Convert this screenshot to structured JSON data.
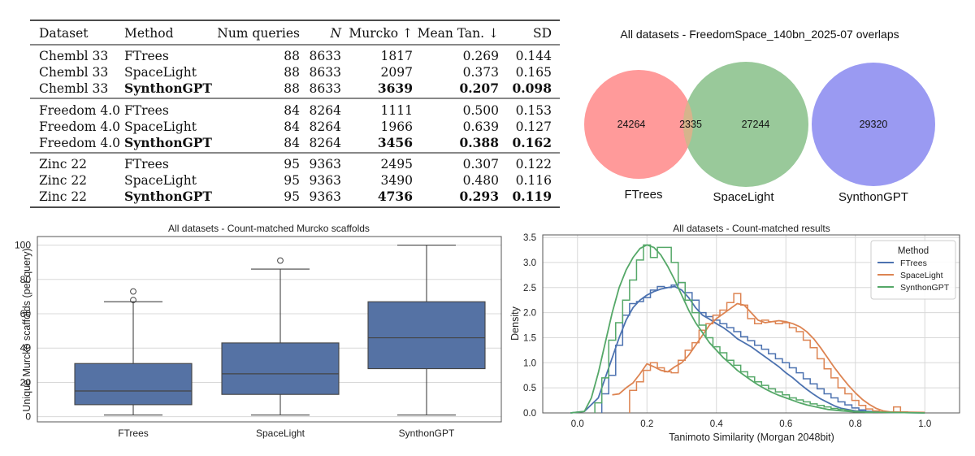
{
  "table": {
    "headers": [
      "Dataset",
      "Method",
      "Num queries",
      "N",
      "Murcko ↑",
      "Mean Tan. ↓",
      "SD"
    ],
    "groups": [
      {
        "rows": [
          {
            "dataset": "Chembl 33",
            "method": "FTrees",
            "num_queries": "88",
            "n": "8633",
            "murcko": "1817",
            "mean_tan": "0.269",
            "sd": "0.144",
            "bold_method": false,
            "bold_murcko": false,
            "bold_tan": false,
            "bold_sd": false
          },
          {
            "dataset": "Chembl 33",
            "method": "SpaceLight",
            "num_queries": "88",
            "n": "8633",
            "murcko": "2097",
            "mean_tan": "0.373",
            "sd": "0.165",
            "bold_method": false,
            "bold_murcko": false,
            "bold_tan": false,
            "bold_sd": false
          },
          {
            "dataset": "Chembl 33",
            "method": "SynthonGPT",
            "num_queries": "88",
            "n": "8633",
            "murcko": "3639",
            "mean_tan": "0.207",
            "sd": "0.098",
            "bold_method": true,
            "bold_murcko": true,
            "bold_tan": true,
            "bold_sd": true
          }
        ]
      },
      {
        "rows": [
          {
            "dataset": "Freedom 4.0",
            "method": "FTrees",
            "num_queries": "84",
            "n": "8264",
            "murcko": "1111",
            "mean_tan": "0.500",
            "sd": "0.153",
            "bold_method": false,
            "bold_murcko": false,
            "bold_tan": false,
            "bold_sd": false
          },
          {
            "dataset": "Freedom 4.0",
            "method": "SpaceLight",
            "num_queries": "84",
            "n": "8264",
            "murcko": "1966",
            "mean_tan": "0.639",
            "sd": "0.127",
            "bold_method": false,
            "bold_murcko": false,
            "bold_tan": false,
            "bold_sd": false
          },
          {
            "dataset": "Freedom 4.0",
            "method": "SynthonGPT",
            "num_queries": "84",
            "n": "8264",
            "murcko": "3456",
            "mean_tan": "0.388",
            "sd": "0.162",
            "bold_method": true,
            "bold_murcko": true,
            "bold_tan": true,
            "bold_sd": true
          }
        ]
      },
      {
        "rows": [
          {
            "dataset": "Zinc 22",
            "method": "FTrees",
            "num_queries": "95",
            "n": "9363",
            "murcko": "2495",
            "mean_tan": "0.307",
            "sd": "0.122",
            "bold_method": false,
            "bold_murcko": false,
            "bold_tan": false,
            "bold_sd": false
          },
          {
            "dataset": "Zinc 22",
            "method": "SpaceLight",
            "num_queries": "95",
            "n": "9363",
            "murcko": "3490",
            "mean_tan": "0.480",
            "sd": "0.116",
            "bold_method": false,
            "bold_murcko": false,
            "bold_tan": false,
            "bold_sd": false
          },
          {
            "dataset": "Zinc 22",
            "method": "SynthonGPT",
            "num_queries": "95",
            "n": "9363",
            "murcko": "4736",
            "mean_tan": "0.293",
            "sd": "0.119",
            "bold_method": true,
            "bold_murcko": true,
            "bold_tan": true,
            "bold_sd": true
          }
        ]
      }
    ]
  },
  "colors": {
    "box_fill": "#5572a4",
    "ftrees": "#4c72b0",
    "spacelight": "#dd8452",
    "synthongpt": "#55a868",
    "venn_ftrees": "#ff9a9a",
    "venn_spacelight": "#99c99a",
    "venn_synthongpt": "#9a9af2",
    "venn_overlap": "#d6b48c"
  },
  "chart_data": [
    {
      "type": "venn",
      "title": "All datasets - FreedomSpace_140bn_2025-07 overlaps",
      "sets": [
        "FTrees",
        "SpaceLight",
        "SynthonGPT"
      ],
      "regions": [
        {
          "label": "FTrees only",
          "value": 24264
        },
        {
          "label": "FTrees ∩ SpaceLight",
          "value": 2335
        },
        {
          "label": "SpaceLight only",
          "value": 27244
        },
        {
          "label": "SynthonGPT only",
          "value": 29320
        }
      ]
    },
    {
      "type": "box",
      "title": "All datasets - Count-matched Murcko scaffolds",
      "xlabel": "",
      "ylabel": "Unique Murcko scaffolds (per query)",
      "categories": [
        "FTrees",
        "SpaceLight",
        "SynthonGPT"
      ],
      "ylim": [
        -3,
        105
      ],
      "yticks": [
        0,
        20,
        40,
        60,
        80,
        100
      ],
      "grid": true,
      "boxes": [
        {
          "min": 1,
          "q1": 7,
          "median": 15,
          "q3": 31,
          "max": 67,
          "outliers": [
            68,
            73
          ]
        },
        {
          "min": 1,
          "q1": 13,
          "median": 25,
          "q3": 43,
          "max": 86,
          "outliers": [
            91
          ]
        },
        {
          "min": 1,
          "q1": 28,
          "median": 46,
          "q3": 67,
          "max": 100,
          "outliers": []
        }
      ]
    },
    {
      "type": "area",
      "title": "All datasets - Count-matched results",
      "xlabel": "Tanimoto Similarity (Morgan 2048bit)",
      "ylabel": "Density",
      "xlim": [
        -0.1,
        1.1
      ],
      "ylim": [
        0,
        3.55
      ],
      "xticks": [
        "0.0",
        "0.2",
        "0.4",
        "0.6",
        "0.8",
        "1.0"
      ],
      "yticks": [
        "0.0",
        "0.5",
        "1.0",
        "1.5",
        "2.0",
        "2.5",
        "3.0",
        "3.5"
      ],
      "grid": true,
      "legend_title": "Method",
      "legend_position": "top-right",
      "series": [
        {
          "name": "FTrees",
          "color_key": "ftrees",
          "kde": [
            [
              -0.02,
              0
            ],
            [
              0.02,
              0.03
            ],
            [
              0.06,
              0.3
            ],
            [
              0.08,
              0.7
            ],
            [
              0.1,
              1.1
            ],
            [
              0.12,
              1.5
            ],
            [
              0.14,
              1.85
            ],
            [
              0.16,
              2.1
            ],
            [
              0.18,
              2.25
            ],
            [
              0.2,
              2.35
            ],
            [
              0.22,
              2.42
            ],
            [
              0.24,
              2.47
            ],
            [
              0.26,
              2.5
            ],
            [
              0.28,
              2.52
            ],
            [
              0.3,
              2.45
            ],
            [
              0.32,
              2.3
            ],
            [
              0.34,
              2.1
            ],
            [
              0.36,
              1.95
            ],
            [
              0.38,
              1.87
            ],
            [
              0.4,
              1.78
            ],
            [
              0.42,
              1.7
            ],
            [
              0.44,
              1.6
            ],
            [
              0.46,
              1.48
            ],
            [
              0.48,
              1.4
            ],
            [
              0.5,
              1.32
            ],
            [
              0.52,
              1.22
            ],
            [
              0.54,
              1.12
            ],
            [
              0.56,
              1.02
            ],
            [
              0.58,
              0.92
            ],
            [
              0.6,
              0.8
            ],
            [
              0.62,
              0.7
            ],
            [
              0.64,
              0.58
            ],
            [
              0.66,
              0.47
            ],
            [
              0.68,
              0.37
            ],
            [
              0.7,
              0.28
            ],
            [
              0.72,
              0.21
            ],
            [
              0.74,
              0.14
            ],
            [
              0.76,
              0.09
            ],
            [
              0.8,
              0.04
            ],
            [
              0.9,
              0.01
            ],
            [
              1.0,
              0.0
            ]
          ],
          "hist_x0": 0.07,
          "hist_w": 0.02,
          "hist": [
            0.38,
            0.75,
            1.35,
            1.95,
            2.18,
            2.22,
            2.3,
            2.45,
            2.52,
            2.5,
            2.55,
            2.6,
            2.4,
            2.25,
            2.0,
            1.92,
            1.85,
            1.78,
            1.7,
            1.62,
            1.52,
            1.44,
            1.35,
            1.27,
            1.18,
            1.08,
            1.0,
            0.9,
            0.8,
            0.68,
            0.58,
            0.48,
            0.38,
            0.3,
            0.22,
            0.16,
            0.1,
            0.06,
            0.03,
            0.02
          ]
        },
        {
          "name": "SpaceLight",
          "color_key": "spacelight",
          "kde": [
            [
              0.1,
              0.36
            ],
            [
              0.12,
              0.38
            ],
            [
              0.14,
              0.5
            ],
            [
              0.16,
              0.6
            ],
            [
              0.18,
              0.78
            ],
            [
              0.2,
              0.98
            ],
            [
              0.22,
              0.92
            ],
            [
              0.24,
              0.85
            ],
            [
              0.26,
              0.82
            ],
            [
              0.28,
              0.92
            ],
            [
              0.3,
              1.0
            ],
            [
              0.32,
              1.15
            ],
            [
              0.34,
              1.35
            ],
            [
              0.36,
              1.55
            ],
            [
              0.38,
              1.75
            ],
            [
              0.4,
              1.88
            ],
            [
              0.42,
              1.98
            ],
            [
              0.44,
              2.08
            ],
            [
              0.46,
              2.18
            ],
            [
              0.48,
              2.15
            ],
            [
              0.5,
              2.0
            ],
            [
              0.52,
              1.85
            ],
            [
              0.54,
              1.8
            ],
            [
              0.56,
              1.82
            ],
            [
              0.58,
              1.84
            ],
            [
              0.6,
              1.82
            ],
            [
              0.62,
              1.78
            ],
            [
              0.64,
              1.72
            ],
            [
              0.66,
              1.62
            ],
            [
              0.68,
              1.48
            ],
            [
              0.7,
              1.3
            ],
            [
              0.72,
              1.1
            ],
            [
              0.74,
              0.9
            ],
            [
              0.76,
              0.72
            ],
            [
              0.78,
              0.55
            ],
            [
              0.8,
              0.4
            ],
            [
              0.82,
              0.27
            ],
            [
              0.84,
              0.17
            ],
            [
              0.86,
              0.09
            ],
            [
              0.88,
              0.04
            ],
            [
              0.9,
              0.02
            ],
            [
              1.0,
              0.01
            ]
          ],
          "hist_x0": 0.15,
          "hist_w": 0.02,
          "hist": [
            0.45,
            0.62,
            0.85,
            1.0,
            0.9,
            0.82,
            0.8,
            1.05,
            1.25,
            1.4,
            1.65,
            1.78,
            1.95,
            2.05,
            2.2,
            2.38,
            2.15,
            1.88,
            1.78,
            1.85,
            1.82,
            1.78,
            1.8,
            1.7,
            1.62,
            1.45,
            1.3,
            1.08,
            0.88,
            0.7,
            0.5,
            0.38,
            0.25,
            0.15,
            0.08,
            0.04,
            0.02,
            0.02,
            0.12,
            0.02
          ]
        },
        {
          "name": "SynthonGPT",
          "color_key": "synthongpt",
          "kde": [
            [
              -0.02,
              0
            ],
            [
              0.02,
              0.03
            ],
            [
              0.04,
              0.3
            ],
            [
              0.06,
              0.8
            ],
            [
              0.08,
              1.4
            ],
            [
              0.1,
              2.0
            ],
            [
              0.12,
              2.5
            ],
            [
              0.14,
              2.85
            ],
            [
              0.16,
              3.1
            ],
            [
              0.18,
              3.28
            ],
            [
              0.2,
              3.35
            ],
            [
              0.22,
              3.3
            ],
            [
              0.24,
              3.15
            ],
            [
              0.26,
              2.92
            ],
            [
              0.28,
              2.65
            ],
            [
              0.3,
              2.35
            ],
            [
              0.32,
              2.05
            ],
            [
              0.34,
              1.8
            ],
            [
              0.36,
              1.6
            ],
            [
              0.38,
              1.4
            ],
            [
              0.4,
              1.25
            ],
            [
              0.42,
              1.1
            ],
            [
              0.44,
              0.98
            ],
            [
              0.46,
              0.85
            ],
            [
              0.48,
              0.75
            ],
            [
              0.5,
              0.65
            ],
            [
              0.52,
              0.56
            ],
            [
              0.54,
              0.48
            ],
            [
              0.56,
              0.41
            ],
            [
              0.58,
              0.35
            ],
            [
              0.6,
              0.3
            ],
            [
              0.62,
              0.25
            ],
            [
              0.64,
              0.2
            ],
            [
              0.66,
              0.16
            ],
            [
              0.68,
              0.13
            ],
            [
              0.7,
              0.1
            ],
            [
              0.72,
              0.07
            ],
            [
              0.76,
              0.04
            ],
            [
              0.8,
              0.02
            ],
            [
              0.9,
              0.01
            ],
            [
              1.0,
              0.0
            ]
          ],
          "hist_x0": 0.05,
          "hist_w": 0.02,
          "hist": [
            0.2,
            0.7,
            1.45,
            1.8,
            2.25,
            2.65,
            3.05,
            3.35,
            3.1,
            3.3,
            3.3,
            3.0,
            2.6,
            2.25,
            2.0,
            1.75,
            1.5,
            1.32,
            1.2,
            1.05,
            0.95,
            0.82,
            0.72,
            0.62,
            0.55,
            0.48,
            0.42,
            0.36,
            0.3,
            0.26,
            0.22,
            0.18,
            0.15,
            0.12,
            0.09,
            0.07,
            0.05,
            0.03,
            0.02,
            0.01
          ]
        }
      ]
    }
  ]
}
